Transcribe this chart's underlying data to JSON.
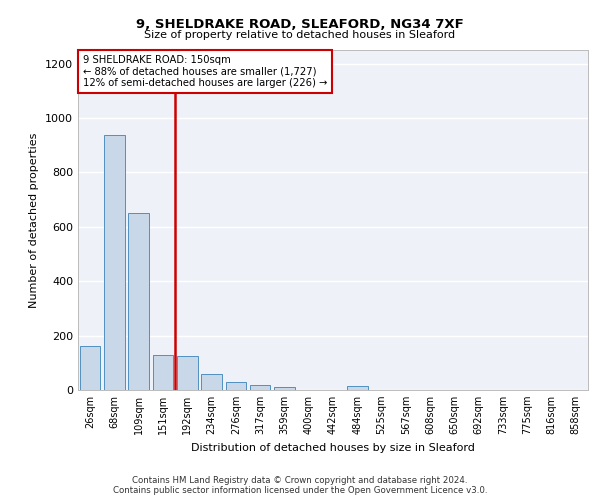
{
  "title1": "9, SHELDRAKE ROAD, SLEAFORD, NG34 7XF",
  "title2": "Size of property relative to detached houses in Sleaford",
  "xlabel": "Distribution of detached houses by size in Sleaford",
  "ylabel": "Number of detached properties",
  "bar_labels": [
    "26sqm",
    "68sqm",
    "109sqm",
    "151sqm",
    "192sqm",
    "234sqm",
    "276sqm",
    "317sqm",
    "359sqm",
    "400sqm",
    "442sqm",
    "484sqm",
    "525sqm",
    "567sqm",
    "608sqm",
    "650sqm",
    "692sqm",
    "733sqm",
    "775sqm",
    "816sqm",
    "858sqm"
  ],
  "bar_values": [
    163,
    937,
    650,
    130,
    125,
    57,
    30,
    17,
    10,
    0,
    0,
    13,
    0,
    0,
    0,
    0,
    0,
    0,
    0,
    0,
    0
  ],
  "bar_color": "#c8d8e8",
  "bar_edge_color": "#5090c0",
  "red_line_x": 3.5,
  "red_line_color": "#cc0000",
  "annotation_title": "9 SHELDRAKE ROAD: 150sqm",
  "annotation_line1": "← 88% of detached houses are smaller (1,727)",
  "annotation_line2": "12% of semi-detached houses are larger (226) →",
  "ylim": [
    0,
    1250
  ],
  "yticks": [
    0,
    200,
    400,
    600,
    800,
    1000,
    1200
  ],
  "footer1": "Contains HM Land Registry data © Crown copyright and database right 2024.",
  "footer2": "Contains public sector information licensed under the Open Government Licence v3.0.",
  "bg_color": "#eef2f8"
}
